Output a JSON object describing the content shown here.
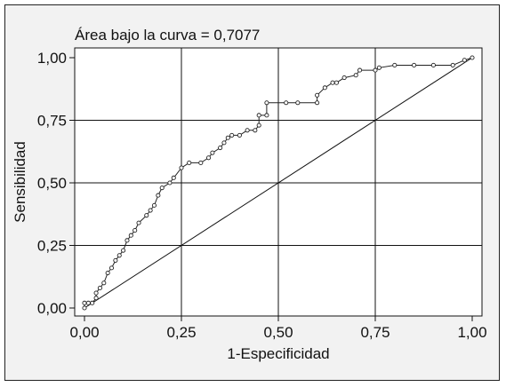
{
  "chart_data": {
    "type": "line",
    "annotation": "Área bajo la curva = 0,7077",
    "xlabel": "1-Especificidad",
    "ylabel": "Sensibilidad",
    "xlim": [
      0,
      1
    ],
    "ylim": [
      0,
      1
    ],
    "grid": true,
    "x_ticks": [
      0,
      0.25,
      0.5,
      0.75,
      1
    ],
    "y_ticks": [
      0,
      0.25,
      0.5,
      0.75,
      1
    ],
    "x_tick_labels": [
      "0,00",
      "0,25",
      "0,50",
      "0,75",
      "1,00"
    ],
    "y_tick_labels": [
      "0,00",
      "0,25",
      "0,50",
      "0,75",
      "1,00"
    ],
    "reference_line": {
      "x": [
        0,
        1
      ],
      "y": [
        0,
        1
      ]
    },
    "series": [
      {
        "x": [
          0.0,
          0.0,
          0.01,
          0.02,
          0.03,
          0.03,
          0.04,
          0.05,
          0.06,
          0.07,
          0.08,
          0.09,
          0.1,
          0.11,
          0.12,
          0.13,
          0.14,
          0.16,
          0.17,
          0.18,
          0.19,
          0.2,
          0.22,
          0.23,
          0.25,
          0.27,
          0.3,
          0.32,
          0.33,
          0.35,
          0.36,
          0.37,
          0.38,
          0.4,
          0.42,
          0.44,
          0.45,
          0.45,
          0.47,
          0.47,
          0.52,
          0.55,
          0.6,
          0.6,
          0.62,
          0.64,
          0.65,
          0.67,
          0.7,
          0.71,
          0.75,
          0.76,
          0.8,
          0.85,
          0.9,
          0.95,
          0.98,
          1.0
        ],
        "y": [
          0.0,
          0.02,
          0.02,
          0.02,
          0.04,
          0.06,
          0.08,
          0.1,
          0.14,
          0.16,
          0.19,
          0.21,
          0.23,
          0.27,
          0.29,
          0.31,
          0.34,
          0.37,
          0.39,
          0.41,
          0.45,
          0.48,
          0.5,
          0.52,
          0.56,
          0.58,
          0.58,
          0.6,
          0.62,
          0.64,
          0.66,
          0.68,
          0.69,
          0.69,
          0.71,
          0.71,
          0.73,
          0.77,
          0.77,
          0.82,
          0.82,
          0.82,
          0.82,
          0.85,
          0.88,
          0.9,
          0.9,
          0.92,
          0.93,
          0.95,
          0.95,
          0.96,
          0.97,
          0.97,
          0.97,
          0.97,
          0.99,
          1.0
        ]
      }
    ]
  }
}
